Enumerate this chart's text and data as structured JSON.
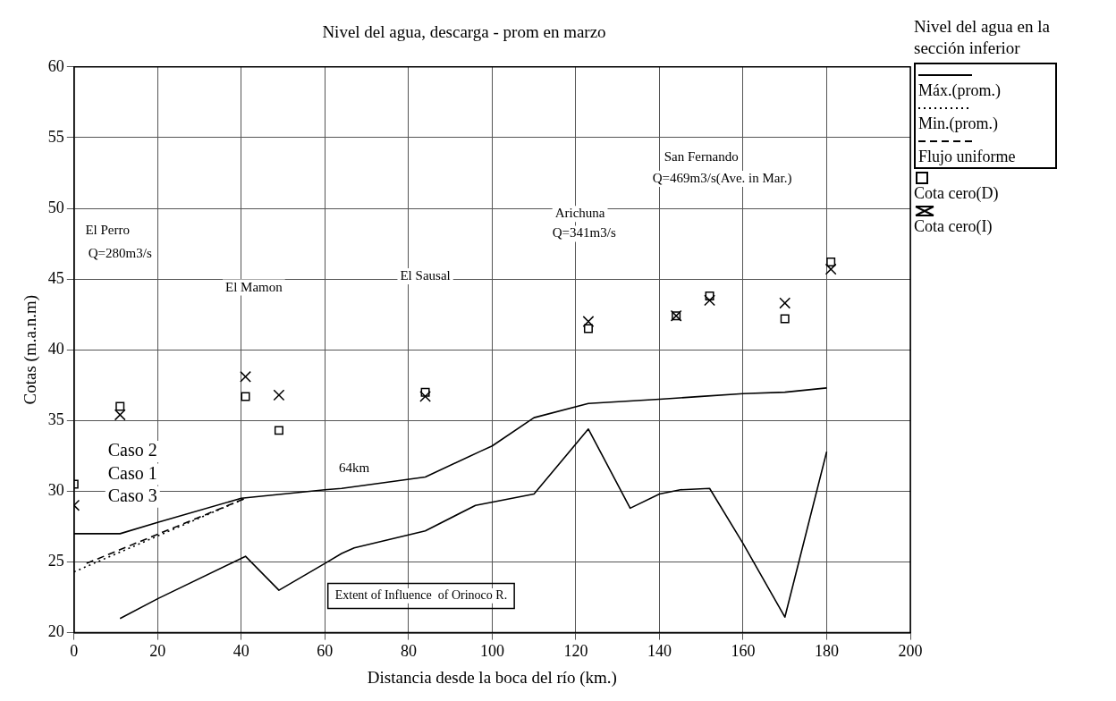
{
  "chart_data": {
    "type": "line",
    "title": "Nivel del agua, descarga - prom en marzo",
    "xlabel": "Distancia desde la boca del río (km.)",
    "ylabel": "Cotas (m.a.n.m)",
    "legend_title": "Nivel del agua en la sección inferior",
    "xlim": [
      0,
      200
    ],
    "xticks": [
      0,
      20,
      40,
      60,
      80,
      100,
      120,
      140,
      160,
      180,
      200
    ],
    "ylim": [
      20,
      60
    ],
    "yticks": [
      20,
      25,
      30,
      35,
      40,
      45,
      50,
      55,
      60
    ],
    "grid": true,
    "legend": "right",
    "series": [
      {
        "name": "Máx.(prom.)",
        "color": "#000000",
        "line_style": "solid",
        "marker": "none",
        "x": [
          0,
          11,
          20,
          40,
          50,
          60,
          64,
          84,
          97,
          100,
          110,
          123,
          140,
          150,
          160,
          170,
          180
        ],
        "values": [
          27.0,
          27.0,
          27.8,
          29.5,
          29.8,
          30.1,
          30.2,
          31.0,
          32.8,
          33.2,
          35.2,
          36.2,
          36.5,
          36.7,
          36.9,
          37.0,
          37.3
        ]
      },
      {
        "name": "Min.(prom.)",
        "color": "#000000",
        "line_style": "dotted",
        "marker": "none",
        "x": [
          0,
          41
        ],
        "values": [
          24.3,
          29.5
        ]
      },
      {
        "name": "Flujo uniforme",
        "color": "#000000",
        "line_style": "dashed",
        "marker": "none",
        "x": [
          3,
          41
        ],
        "values": [
          24.9,
          29.5
        ]
      },
      {
        "color": "#000000",
        "line_style": "solid",
        "marker": "none",
        "x": [
          11,
          20,
          41,
          49,
          60,
          64,
          67,
          84,
          96,
          110,
          123,
          133,
          140,
          145,
          152,
          160,
          170,
          180
        ],
        "values": [
          21.0,
          22.4,
          25.4,
          23.0,
          24.9,
          25.6,
          26.0,
          27.2,
          29.0,
          29.8,
          34.4,
          28.8,
          29.8,
          30.1,
          30.2,
          26.3,
          21.1,
          32.8
        ]
      },
      {
        "name": "Cota cero(D)",
        "type": "scatter",
        "color": "#000000",
        "marker": "square",
        "x": [
          0,
          11,
          41,
          49,
          84,
          123,
          144,
          152,
          170,
          181
        ],
        "values": [
          30.5,
          36.0,
          36.7,
          34.3,
          37.0,
          41.5,
          42.4,
          43.8,
          42.2,
          46.2
        ]
      },
      {
        "name": "Cota cero(I)",
        "type": "scatter",
        "color": "#000000",
        "marker": "cross",
        "x": [
          0,
          11,
          41,
          49,
          84,
          123,
          144,
          152,
          170,
          181
        ],
        "values": [
          29.0,
          35.4,
          38.1,
          36.8,
          36.7,
          42.0,
          42.4,
          43.5,
          43.3,
          45.7
        ]
      }
    ],
    "annotations": [
      "El Perro",
      "Q=280m3/s",
      "El Mamon",
      "El Sausal",
      "Arichuna",
      "Q=341m3/s",
      "San Fernando",
      "Q=469m3/s(Ave. in Mar.)",
      "Caso 2",
      "Caso 1",
      "Caso 3",
      "64km",
      "Extent of Influence  of Orinoco R."
    ]
  }
}
